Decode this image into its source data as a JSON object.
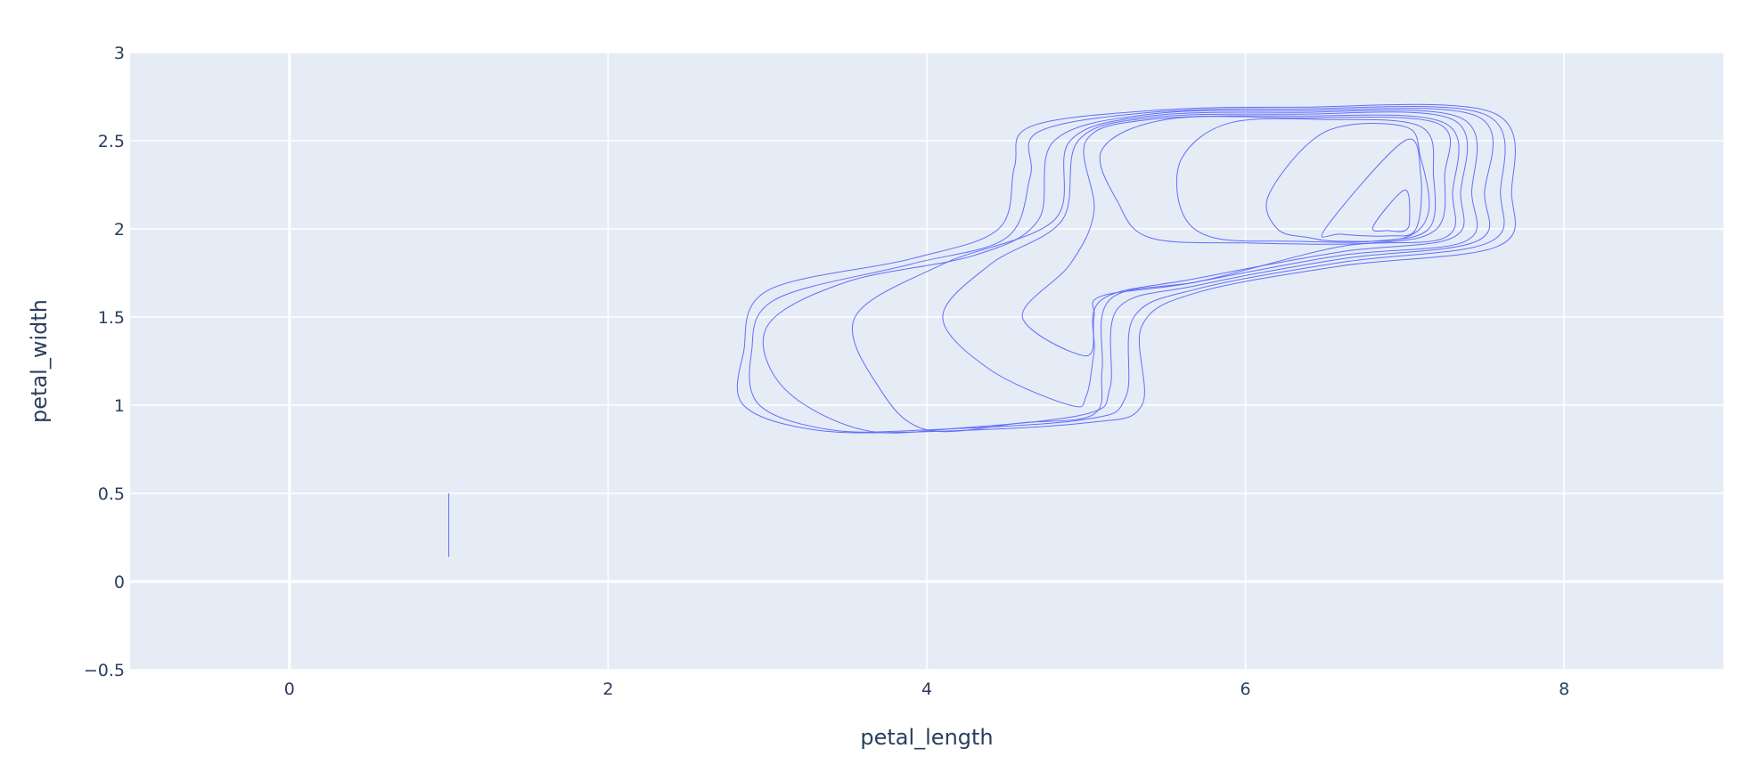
{
  "chart_data": {
    "type": "contour",
    "xlabel": "petal_length",
    "ylabel": "petal_width",
    "xlim": [
      -1,
      9
    ],
    "ylim": [
      -0.5,
      3
    ],
    "x_ticks": [
      0,
      2,
      4,
      6,
      8
    ],
    "y_ticks": [
      -0.5,
      0,
      0.5,
      1,
      1.5,
      2,
      2.5,
      3
    ],
    "x_tick_labels": [
      "0",
      "2",
      "4",
      "6",
      "8"
    ],
    "y_tick_labels": [
      "−0.5",
      "0",
      "0.5",
      "1",
      "1.5",
      "2",
      "2.5",
      "3"
    ],
    "grid": true,
    "colors": {
      "plot_bg": "#e5ecf6",
      "grid": "#ffffff",
      "contour": "#636efa",
      "text": "#2a3f5f"
    },
    "series": [
      {
        "values": [
          [
            [
              1.0,
              0.14
            ],
            [
              1.0,
              0.5
            ]
          ],
          [
            [
              6.8,
              2.01
            ],
            [
              7.0,
              2.22
            ],
            [
              7.03,
              2.05
            ],
            [
              7.0,
              1.99
            ],
            [
              6.9,
              1.99
            ],
            [
              6.8,
              2.01
            ]
          ],
          [
            [
              6.5,
              2.0
            ],
            [
              7.0,
              2.5
            ],
            [
              7.1,
              2.3
            ],
            [
              7.07,
              2.0
            ],
            [
              6.9,
              1.96
            ],
            [
              6.6,
              1.97
            ],
            [
              6.5,
              2.0
            ]
          ],
          [
            [
              6.4,
              1.95
            ],
            [
              6.2,
              2.0
            ],
            [
              6.15,
              2.2
            ],
            [
              6.5,
              2.55
            ],
            [
              7.0,
              2.58
            ],
            [
              7.1,
              2.4
            ],
            [
              7.15,
              2.1
            ],
            [
              7.0,
              1.95
            ],
            [
              6.6,
              1.93
            ],
            [
              6.4,
              1.95
            ]
          ],
          [
            [
              5.8,
              1.95
            ],
            [
              5.6,
              2.1
            ],
            [
              5.6,
              2.4
            ],
            [
              5.9,
              2.6
            ],
            [
              6.5,
              2.62
            ],
            [
              7.1,
              2.58
            ],
            [
              7.18,
              2.3
            ],
            [
              7.15,
              2.0
            ],
            [
              6.8,
              1.93
            ],
            [
              6.3,
              1.93
            ],
            [
              5.8,
              1.95
            ]
          ],
          [
            [
              5.4,
              1.95
            ],
            [
              5.2,
              2.15
            ],
            [
              5.1,
              2.45
            ],
            [
              5.5,
              2.62
            ],
            [
              6.3,
              2.63
            ],
            [
              7.2,
              2.6
            ],
            [
              7.25,
              2.3
            ],
            [
              7.2,
              2.0
            ],
            [
              6.8,
              1.92
            ],
            [
              6.0,
              1.92
            ],
            [
              5.4,
              1.95
            ]
          ],
          [
            [
              5.0,
              1.28
            ],
            [
              4.6,
              1.5
            ],
            [
              4.9,
              1.8
            ],
            [
              5.05,
              2.1
            ],
            [
              5.0,
              2.5
            ],
            [
              5.4,
              2.62
            ],
            [
              6.3,
              2.64
            ],
            [
              7.25,
              2.6
            ],
            [
              7.3,
              2.2
            ],
            [
              7.25,
              1.95
            ],
            [
              6.6,
              1.9
            ],
            [
              5.7,
              1.7
            ],
            [
              5.1,
              1.62
            ],
            [
              5.05,
              1.5
            ],
            [
              5.0,
              1.28
            ]
          ],
          [
            [
              4.9,
              1.0
            ],
            [
              4.4,
              1.2
            ],
            [
              4.1,
              1.5
            ],
            [
              4.4,
              1.8
            ],
            [
              4.85,
              2.05
            ],
            [
              4.95,
              2.5
            ],
            [
              5.4,
              2.63
            ],
            [
              6.3,
              2.65
            ],
            [
              7.3,
              2.62
            ],
            [
              7.35,
              2.2
            ],
            [
              7.3,
              1.95
            ],
            [
              6.6,
              1.87
            ],
            [
              5.7,
              1.72
            ],
            [
              5.1,
              1.6
            ],
            [
              5.05,
              1.3
            ],
            [
              5.0,
              1.05
            ],
            [
              4.9,
              1.0
            ]
          ],
          [
            [
              4.0,
              0.86
            ],
            [
              3.7,
              1.1
            ],
            [
              3.55,
              1.5
            ],
            [
              4.1,
              1.8
            ],
            [
              4.8,
              2.05
            ],
            [
              4.9,
              2.5
            ],
            [
              5.4,
              2.64
            ],
            [
              6.3,
              2.66
            ],
            [
              7.35,
              2.63
            ],
            [
              7.42,
              2.2
            ],
            [
              7.38,
              1.93
            ],
            [
              6.6,
              1.85
            ],
            [
              5.7,
              1.7
            ],
            [
              5.15,
              1.6
            ],
            [
              5.1,
              1.2
            ],
            [
              5.05,
              0.95
            ],
            [
              4.6,
              0.9
            ],
            [
              4.0,
              0.86
            ]
          ],
          [
            [
              3.6,
              0.86
            ],
            [
              3.1,
              1.1
            ],
            [
              3.0,
              1.45
            ],
            [
              3.5,
              1.7
            ],
            [
              4.3,
              1.85
            ],
            [
              4.7,
              2.05
            ],
            [
              4.8,
              2.5
            ],
            [
              5.4,
              2.65
            ],
            [
              6.3,
              2.67
            ],
            [
              7.45,
              2.64
            ],
            [
              7.5,
              2.2
            ],
            [
              7.45,
              1.93
            ],
            [
              6.6,
              1.83
            ],
            [
              5.7,
              1.68
            ],
            [
              5.2,
              1.55
            ],
            [
              5.15,
              1.1
            ],
            [
              5.0,
              0.95
            ],
            [
              4.2,
              0.87
            ],
            [
              3.6,
              0.86
            ]
          ],
          [
            [
              3.4,
              0.86
            ],
            [
              2.95,
              1.0
            ],
            [
              2.9,
              1.3
            ],
            [
              3.05,
              1.6
            ],
            [
              3.9,
              1.8
            ],
            [
              4.5,
              1.95
            ],
            [
              4.65,
              2.3
            ],
            [
              4.7,
              2.55
            ],
            [
              5.4,
              2.66
            ],
            [
              6.3,
              2.68
            ],
            [
              7.5,
              2.65
            ],
            [
              7.6,
              2.2
            ],
            [
              7.52,
              1.92
            ],
            [
              6.6,
              1.81
            ],
            [
              5.7,
              1.66
            ],
            [
              5.3,
              1.5
            ],
            [
              5.25,
              1.05
            ],
            [
              5.0,
              0.92
            ],
            [
              4.0,
              0.86
            ],
            [
              3.4,
              0.86
            ]
          ],
          [
            [
              3.3,
              0.86
            ],
            [
              2.85,
              1.0
            ],
            [
              2.85,
              1.3
            ],
            [
              3.0,
              1.65
            ],
            [
              3.9,
              1.83
            ],
            [
              4.45,
              2.0
            ],
            [
              4.55,
              2.35
            ],
            [
              4.65,
              2.58
            ],
            [
              5.4,
              2.67
            ],
            [
              6.3,
              2.69
            ],
            [
              7.55,
              2.66
            ],
            [
              7.67,
              2.2
            ],
            [
              7.58,
              1.9
            ],
            [
              6.6,
              1.79
            ],
            [
              5.7,
              1.64
            ],
            [
              5.35,
              1.45
            ],
            [
              5.35,
              1.0
            ],
            [
              5.0,
              0.9
            ],
            [
              4.0,
              0.85
            ],
            [
              3.3,
              0.86
            ]
          ]
        ]
      }
    ]
  }
}
